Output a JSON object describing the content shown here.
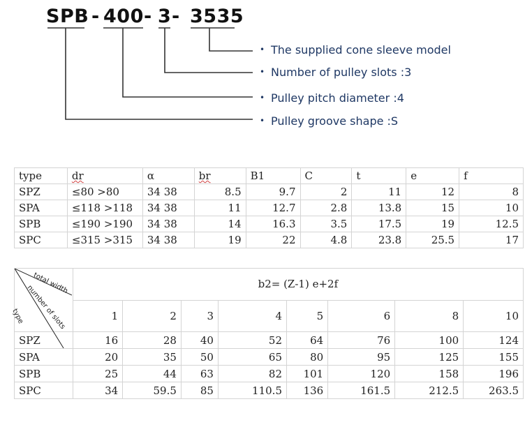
{
  "diagram": {
    "code_parts": [
      "SPB",
      "-",
      "400",
      "-",
      "3",
      "-",
      "3535"
    ],
    "legend": [
      "The supplied cone sleeve model",
      "Number of pulley slots :3",
      "Pulley pitch diameter :4",
      "Pulley groove shape :S"
    ],
    "bullet": "•"
  },
  "table1": {
    "headers": [
      "type",
      "dr",
      "α",
      "br",
      "B1",
      "C",
      "t",
      "e",
      "f"
    ],
    "rows": [
      [
        "SPZ",
        "≤80 >80",
        "34 38",
        "8.5",
        "9.7",
        "2",
        "11",
        "12",
        "8"
      ],
      [
        "SPA",
        "≤118 >118",
        "34 38",
        "11",
        "12.7",
        "2.8",
        "13.8",
        "15",
        "10"
      ],
      [
        "SPB",
        "≤190 >190",
        "34 38",
        "14",
        "16.3",
        "3.5",
        "17.5",
        "19",
        "12.5"
      ],
      [
        "SPC",
        "≤315 >315",
        "34 38",
        "19",
        "22",
        "4.8",
        "23.8",
        "25.5",
        "17"
      ]
    ]
  },
  "table2": {
    "corner_labels": [
      "total width",
      "number of slots",
      "type"
    ],
    "formula": "b2= (Z-1) e+2f",
    "slots": [
      "1",
      "2",
      "3",
      "4",
      "5",
      "6",
      "8",
      "10"
    ],
    "rows": [
      [
        "SPZ",
        "16",
        "28",
        "40",
        "52",
        "64",
        "76",
        "100",
        "124"
      ],
      [
        "SPA",
        "20",
        "35",
        "50",
        "65",
        "80",
        "95",
        "125",
        "155"
      ],
      [
        "SPB",
        "25",
        "44",
        "63",
        "82",
        "101",
        "120",
        "158",
        "196"
      ],
      [
        "SPC",
        "34",
        "59.5",
        "85",
        "110.5",
        "136",
        "161.5",
        "212.5",
        "263.5"
      ]
    ]
  }
}
